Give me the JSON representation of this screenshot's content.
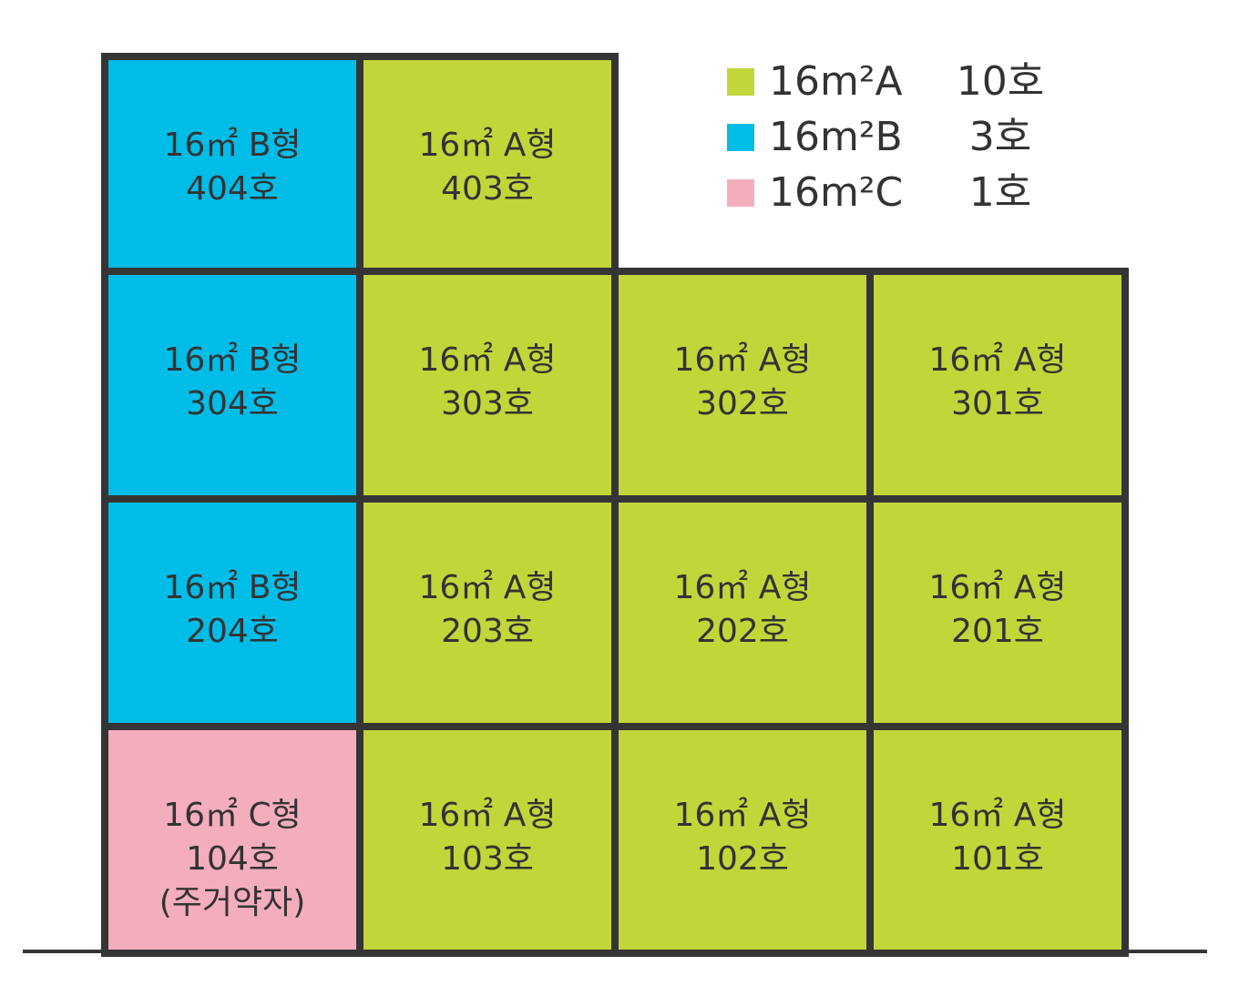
{
  "legend": [
    {
      "label": "16m²A",
      "count": "10호"
    },
    {
      "label": "16m²B",
      "count": "3호"
    },
    {
      "label": "16m²C",
      "count": "1호"
    }
  ],
  "units": [
    {
      "type": "16㎡ B형",
      "number": "404호"
    },
    {
      "type": "16㎡ A형",
      "number": "403호"
    },
    {
      "type": "16㎡ B형",
      "number": "304호"
    },
    {
      "type": "16㎡ A형",
      "number": "303호"
    },
    {
      "type": "16㎡ A형",
      "number": "302호"
    },
    {
      "type": "16㎡ A형",
      "number": "301호"
    },
    {
      "type": "16㎡ B형",
      "number": "204호"
    },
    {
      "type": "16㎡ A형",
      "number": "203호"
    },
    {
      "type": "16㎡ A형",
      "number": "202호"
    },
    {
      "type": "16㎡ A형",
      "number": "201호"
    },
    {
      "type": "16㎡ C형",
      "number": "104호",
      "note": "(주거약자)"
    },
    {
      "type": "16㎡ A형",
      "number": "103호"
    },
    {
      "type": "16㎡ A형",
      "number": "102호"
    },
    {
      "type": "16㎡ A형",
      "number": "101호"
    }
  ]
}
